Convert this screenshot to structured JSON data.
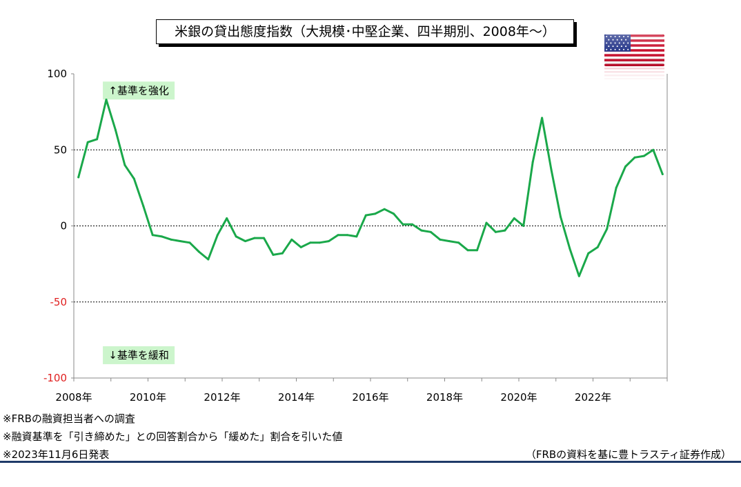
{
  "title": "米銀の貸出態度指数（大規模･中堅企業、四半期別、2008年～）",
  "notes": [
    "※FRBの融資担当者への調査",
    "※融資基準を「引き締めた」との回答割合から「緩めた」割合を引いた値",
    "※2023年11月6日発表"
  ],
  "source": "（FRBの資料を基に豊トラスティ証券作成）",
  "flag_icon": "us-flag-icon",
  "colors": {
    "line": "#1aa84a",
    "negative_tick": "#e02020",
    "annotation_bg": "#ccf5cc",
    "bottom_line": "#1f3a68"
  },
  "chart_data": {
    "type": "line",
    "title": "米銀の貸出態度指数（大規模･中堅企業、四半期別、2008年～）",
    "xlabel": "",
    "ylabel": "",
    "ylim": [
      -100,
      100
    ],
    "xlim": [
      2008.0,
      2024.0
    ],
    "yticks": [
      {
        "value": 100,
        "label": "100"
      },
      {
        "value": 50,
        "label": "50"
      },
      {
        "value": 0,
        "label": "0"
      },
      {
        "value": -50,
        "label": "-50"
      },
      {
        "value": -100,
        "label": "-100"
      }
    ],
    "xticks": [
      {
        "value": 2008,
        "label": "2008年"
      },
      {
        "value": 2010,
        "label": "2010年"
      },
      {
        "value": 2012,
        "label": "2012年"
      },
      {
        "value": 2014,
        "label": "2014年"
      },
      {
        "value": 2016,
        "label": "2016年"
      },
      {
        "value": 2018,
        "label": "2018年"
      },
      {
        "value": 2020,
        "label": "2020年"
      },
      {
        "value": 2022,
        "label": "2022年"
      }
    ],
    "gridlines": [
      50,
      0,
      -50
    ],
    "annotations": [
      {
        "text": "↑基準を強化",
        "x": 2009.75,
        "y": 89
      },
      {
        "text": "↓基準を緩和",
        "x": 2009.75,
        "y": -85
      }
    ],
    "series": [
      {
        "name": "",
        "x": [
          2008.125,
          2008.375,
          2008.625,
          2008.875,
          2009.125,
          2009.375,
          2009.625,
          2009.875,
          2010.125,
          2010.375,
          2010.625,
          2010.875,
          2011.125,
          2011.375,
          2011.625,
          2011.875,
          2012.125,
          2012.375,
          2012.625,
          2012.875,
          2013.125,
          2013.375,
          2013.625,
          2013.875,
          2014.125,
          2014.375,
          2014.625,
          2014.875,
          2015.125,
          2015.375,
          2015.625,
          2015.875,
          2016.125,
          2016.375,
          2016.625,
          2016.875,
          2017.125,
          2017.375,
          2017.625,
          2017.875,
          2018.125,
          2018.375,
          2018.625,
          2018.875,
          2019.125,
          2019.375,
          2019.625,
          2019.875,
          2020.125,
          2020.375,
          2020.625,
          2020.875,
          2021.125,
          2021.375,
          2021.625,
          2021.875,
          2022.125,
          2022.375,
          2022.625,
          2022.875,
          2023.125,
          2023.375,
          2023.625,
          2023.875
        ],
        "values": [
          32,
          55,
          57,
          83,
          63,
          40,
          31,
          13,
          -6,
          -7,
          -9,
          -10,
          -11,
          -17,
          -22,
          -6,
          5,
          -7,
          -10,
          -8,
          -8,
          -19,
          -18,
          -9,
          -14,
          -11,
          -11,
          -10,
          -6,
          -6,
          -7,
          7,
          8,
          11,
          8,
          1,
          1,
          -3,
          -4,
          -9,
          -10,
          -11,
          -16,
          -16,
          2,
          -4,
          -3,
          5,
          0,
          42,
          71,
          37,
          6,
          -15,
          -33,
          -18,
          -14,
          -2,
          25,
          39,
          45,
          46,
          50,
          34
        ]
      }
    ]
  }
}
